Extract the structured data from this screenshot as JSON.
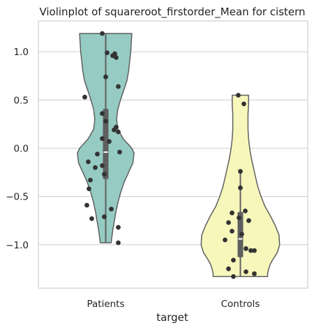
{
  "chart_data": {
    "type": "violin",
    "title": "Violinplot of squareroot_firstorder_Mean for cistern",
    "xlabel": "target",
    "ylabel": "",
    "ylim": [
      -1.45,
      1.32
    ],
    "y_ticks": [
      1.0,
      0.5,
      0.0,
      -0.5,
      -1.0
    ],
    "y_tick_labels": [
      "1.0",
      "0.5",
      "0.0",
      "−0.5",
      "−1.0"
    ],
    "grid": "horizontal",
    "categories": [
      "Patients",
      "Controls"
    ],
    "series": [
      {
        "category": "Patients",
        "color": "#95cbc3",
        "density_profile": [
          [
            1.19,
            0.48
          ],
          [
            1.1,
            0.47
          ],
          [
            1.0,
            0.46
          ],
          [
            0.9,
            0.44
          ],
          [
            0.8,
            0.42
          ],
          [
            0.7,
            0.39
          ],
          [
            0.6,
            0.33
          ],
          [
            0.5,
            0.27
          ],
          [
            0.4,
            0.22
          ],
          [
            0.3,
            0.2
          ],
          [
            0.2,
            0.22
          ],
          [
            0.1,
            0.32
          ],
          [
            0.0,
            0.48
          ],
          [
            -0.05,
            0.52
          ],
          [
            -0.15,
            0.5
          ],
          [
            -0.25,
            0.42
          ],
          [
            -0.35,
            0.34
          ],
          [
            -0.45,
            0.28
          ],
          [
            -0.55,
            0.23
          ],
          [
            -0.65,
            0.19
          ],
          [
            -0.75,
            0.16
          ],
          [
            -0.85,
            0.13
          ],
          [
            -0.93,
            0.11
          ],
          [
            -0.98,
            0.1
          ]
        ],
        "box": {
          "q1": -0.32,
          "median": -0.04,
          "q3": 0.41,
          "whisker_low": -0.98,
          "whisker_high": 1.19
        },
        "points": [
          [
            1.19,
            -0.05
          ],
          [
            0.99,
            0.02
          ],
          [
            0.98,
            0.13
          ],
          [
            0.96,
            0.1
          ],
          [
            0.94,
            0.15
          ],
          [
            0.74,
            0.0
          ],
          [
            0.64,
            0.18
          ],
          [
            0.53,
            -0.3
          ],
          [
            0.36,
            -0.05
          ],
          [
            0.28,
            0.0
          ],
          [
            0.22,
            0.15
          ],
          [
            0.19,
            0.12
          ],
          [
            0.17,
            0.18
          ],
          [
            0.1,
            -0.05
          ],
          [
            0.07,
            0.05
          ],
          [
            -0.04,
            0.2
          ],
          [
            -0.06,
            -0.12
          ],
          [
            -0.14,
            -0.25
          ],
          [
            -0.18,
            -0.05
          ],
          [
            -0.2,
            -0.15
          ],
          [
            -0.27,
            -0.02
          ],
          [
            -0.33,
            -0.22
          ],
          [
            -0.42,
            -0.24
          ],
          [
            -0.59,
            -0.27
          ],
          [
            -0.63,
            0.08
          ],
          [
            -0.71,
            -0.02
          ],
          [
            -0.73,
            -0.2
          ],
          [
            -0.82,
            0.18
          ],
          [
            -0.98,
            0.18
          ]
        ]
      },
      {
        "category": "Controls",
        "color": "#f7f7bc",
        "density_profile": [
          [
            0.55,
            0.15
          ],
          [
            0.45,
            0.15
          ],
          [
            0.35,
            0.14
          ],
          [
            0.2,
            0.14
          ],
          [
            0.1,
            0.15
          ],
          [
            0.0,
            0.17
          ],
          [
            -0.1,
            0.2
          ],
          [
            -0.2,
            0.24
          ],
          [
            -0.3,
            0.28
          ],
          [
            -0.4,
            0.32
          ],
          [
            -0.5,
            0.38
          ],
          [
            -0.6,
            0.45
          ],
          [
            -0.7,
            0.55
          ],
          [
            -0.8,
            0.64
          ],
          [
            -0.9,
            0.71
          ],
          [
            -1.0,
            0.72
          ],
          [
            -1.08,
            0.68
          ],
          [
            -1.15,
            0.6
          ],
          [
            -1.2,
            0.55
          ],
          [
            -1.25,
            0.52
          ],
          [
            -1.3,
            0.5
          ],
          [
            -1.33,
            0.5
          ]
        ],
        "box": {
          "q1": -1.13,
          "median": -0.94,
          "q3": -0.66,
          "whisker_low": -1.33,
          "whisker_high": -0.24
        },
        "points": [
          [
            0.55,
            -0.03
          ],
          [
            0.46,
            0.05
          ],
          [
            -0.24,
            0.0
          ],
          [
            -0.41,
            0.0
          ],
          [
            -0.65,
            0.07
          ],
          [
            -0.67,
            -0.12
          ],
          [
            -0.72,
            -0.02
          ],
          [
            -0.75,
            0.12
          ],
          [
            -0.77,
            -0.17
          ],
          [
            -0.86,
            -0.12
          ],
          [
            -0.89,
            0.02
          ],
          [
            -0.95,
            -0.22
          ],
          [
            -1.04,
            0.08
          ],
          [
            -1.06,
            0.15
          ],
          [
            -1.06,
            0.2
          ],
          [
            -1.16,
            -0.1
          ],
          [
            -1.25,
            -0.17
          ],
          [
            -1.28,
            0.08
          ],
          [
            -1.3,
            0.2
          ],
          [
            -1.33,
            -0.1
          ]
        ]
      }
    ]
  }
}
